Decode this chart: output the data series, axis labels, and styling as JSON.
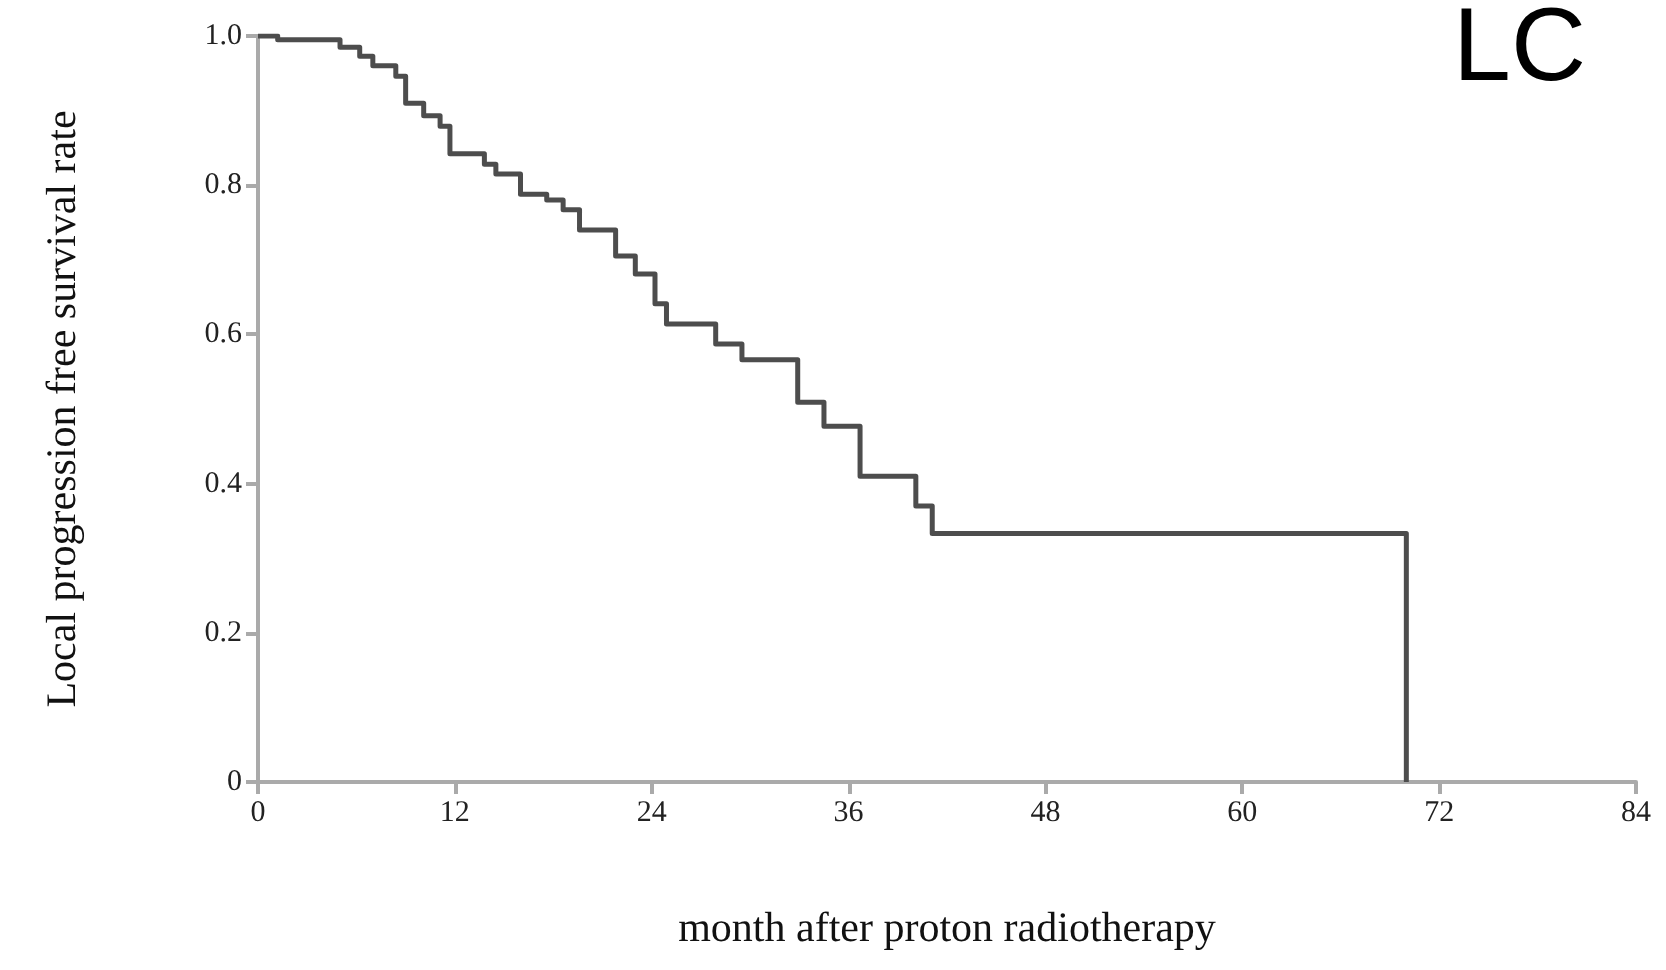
{
  "chart_data": {
    "type": "step",
    "title": "LC",
    "xlabel": "month after proton radiotherapy",
    "ylabel": "Local progression free survival rate",
    "color": "#4d4d4d",
    "x": [
      0,
      1.2,
      5.0,
      6.2,
      7.0,
      8.4,
      9.0,
      10.1,
      11.1,
      11.7,
      13.8,
      14.5,
      16.0,
      17.6,
      18.6,
      19.6,
      21.8,
      23.0,
      24.2,
      24.9,
      27.9,
      29.5,
      32.9,
      34.5,
      36.7,
      40.1,
      41.1,
      70.0
    ],
    "values": [
      1.0,
      0.995,
      0.985,
      0.973,
      0.96,
      0.946,
      0.91,
      0.893,
      0.879,
      0.842,
      0.828,
      0.815,
      0.788,
      0.78,
      0.767,
      0.74,
      0.705,
      0.681,
      0.641,
      0.614,
      0.587,
      0.566,
      0.509,
      0.477,
      0.41,
      0.37,
      0.333,
      0
    ],
    "xlim": [
      0,
      84
    ],
    "xticks": [
      0,
      12,
      24,
      36,
      48,
      60,
      72,
      84
    ],
    "ylim": [
      0,
      1
    ],
    "yticks": [
      0,
      0.2,
      0.4,
      0.6,
      0.8,
      {
        "value": 1,
        "label": "1.0"
      }
    ]
  }
}
